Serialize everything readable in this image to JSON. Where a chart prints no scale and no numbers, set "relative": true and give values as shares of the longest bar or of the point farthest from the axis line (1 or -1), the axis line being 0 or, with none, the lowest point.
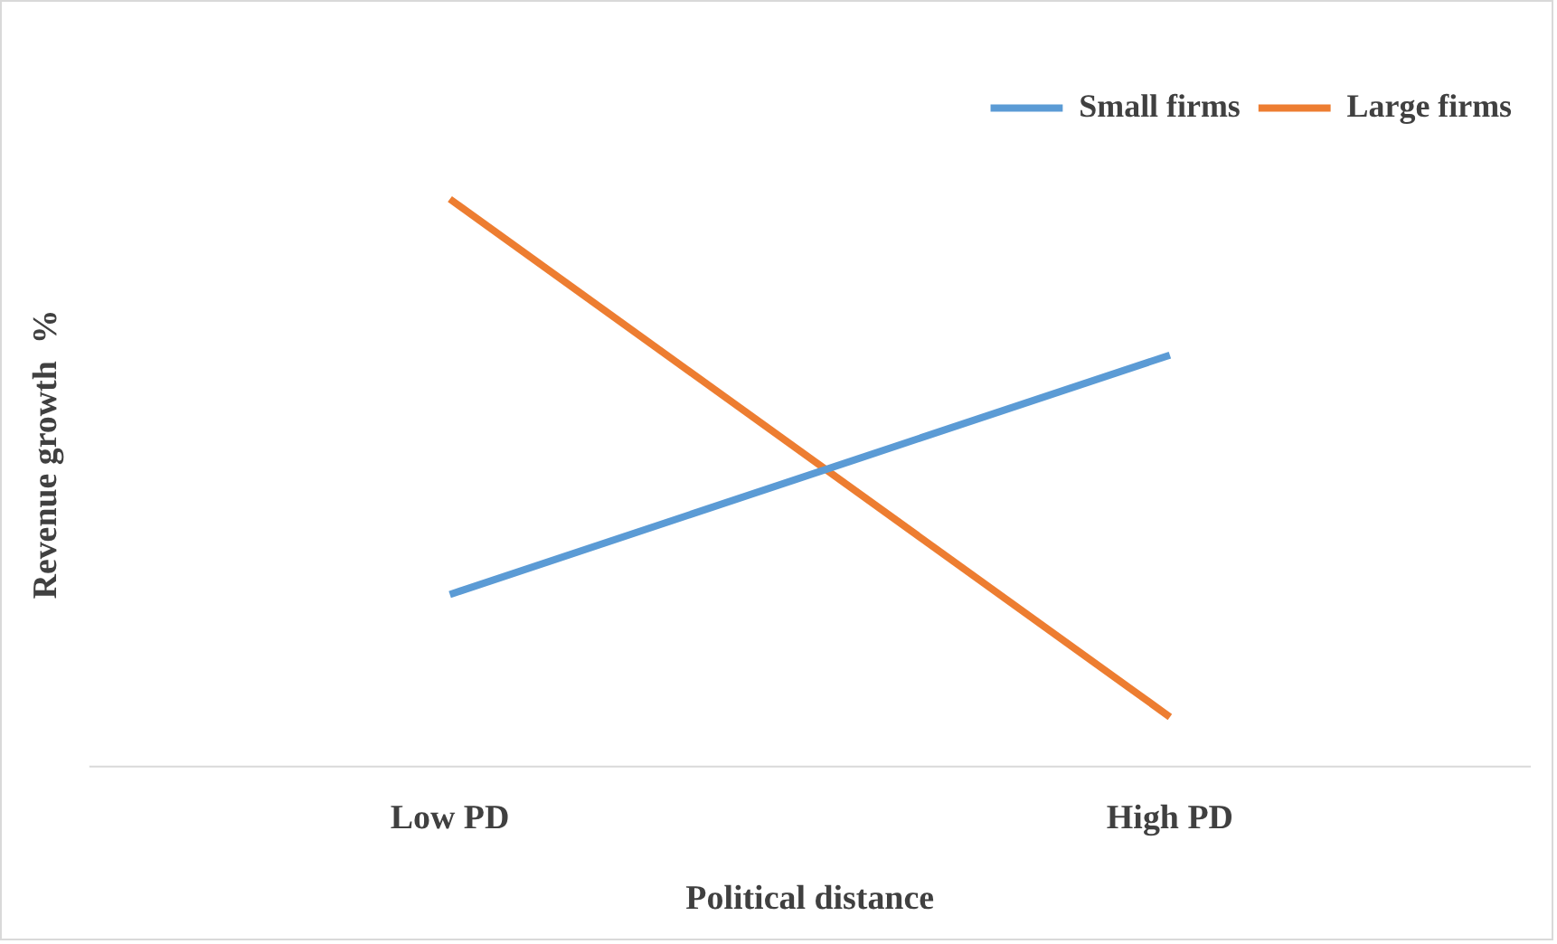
{
  "chart_data": {
    "type": "line",
    "relative": true,
    "xlabel": "Political distance",
    "ylabel": "Revenue growth  %",
    "categories": [
      "Low PD",
      "High PD"
    ],
    "series": [
      {
        "name": "Small firms",
        "color": "#5b9bd5",
        "values": [
          0.303,
          0.725
        ]
      },
      {
        "name": "Large firms",
        "color": "#ed7d31",
        "values": [
          1,
          0.087
        ]
      }
    ],
    "legend": "top right",
    "grid": false
  }
}
